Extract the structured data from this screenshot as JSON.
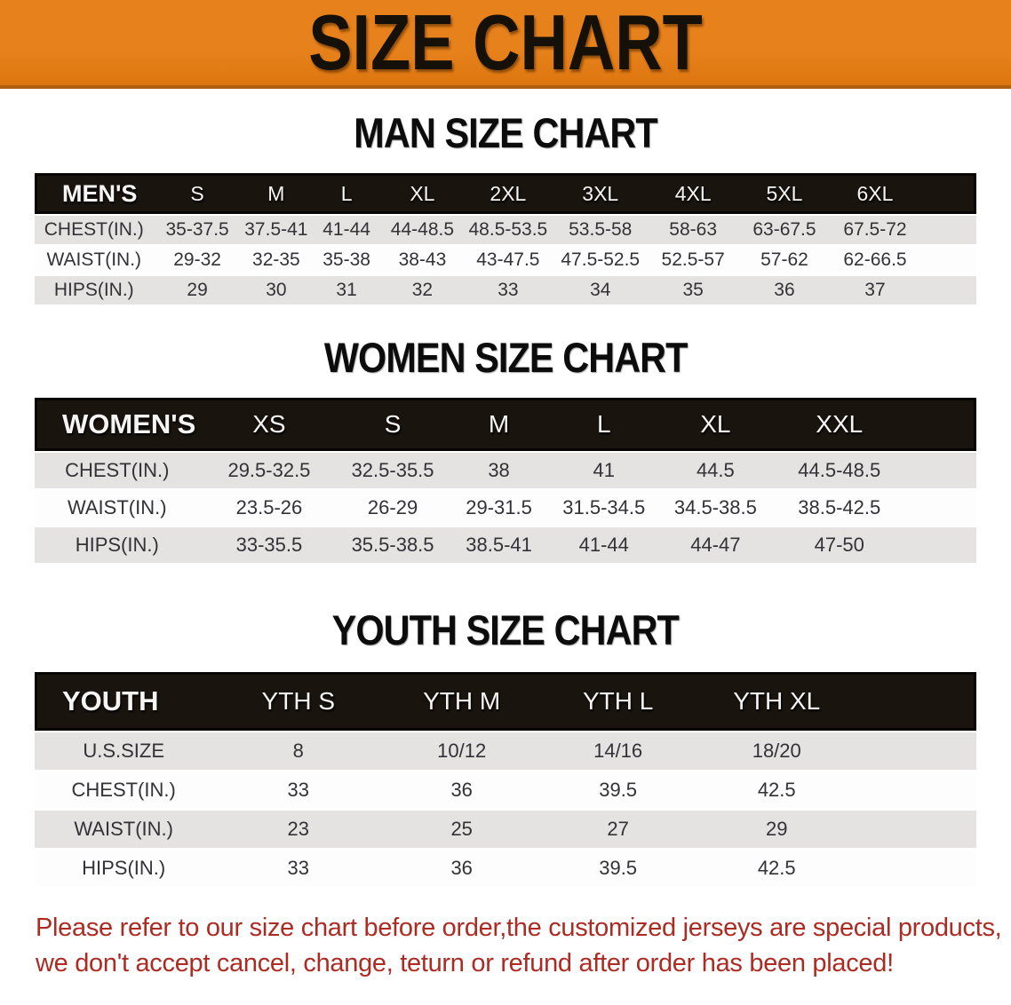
{
  "banner": {
    "title": "SIZE CHART",
    "bg_color": "#e7811b",
    "text_color": "#151008"
  },
  "sections": [
    {
      "title": "MAN SIZE CHART",
      "header_label": "MEN'S",
      "columns": [
        "S",
        "M",
        "L",
        "XL",
        "2XL",
        "3XL",
        "4XL",
        "5XL",
        "6XL"
      ],
      "rows": [
        {
          "label": "CHEST(IN.)",
          "values": [
            "35-37.5",
            "37.5-41",
            "41-44",
            "44-48.5",
            "48.5-53.5",
            "53.5-58",
            "58-63",
            "63-67.5",
            "67.5-72"
          ]
        },
        {
          "label": "WAIST(IN.)",
          "values": [
            "29-32",
            "32-35",
            "35-38",
            "38-43",
            "43-47.5",
            "47.5-52.5",
            "52.5-57",
            "57-62",
            "62-66.5"
          ]
        },
        {
          "label": "HIPS(IN.)",
          "values": [
            "29",
            "30",
            "31",
            "32",
            "33",
            "34",
            "35",
            "36",
            "37"
          ]
        }
      ]
    },
    {
      "title": "WOMEN SIZE CHART",
      "header_label": "WOMEN'S",
      "columns": [
        "XS",
        "S",
        "M",
        "L",
        "XL",
        "XXL"
      ],
      "rows": [
        {
          "label": "CHEST(IN.)",
          "values": [
            "29.5-32.5",
            "32.5-35.5",
            "38",
            "41",
            "44.5",
            "44.5-48.5"
          ]
        },
        {
          "label": "WAIST(IN.)",
          "values": [
            "23.5-26",
            "26-29",
            "29-31.5",
            "31.5-34.5",
            "34.5-38.5",
            "38.5-42.5"
          ]
        },
        {
          "label": "HIPS(IN.)",
          "values": [
            "33-35.5",
            "35.5-38.5",
            "38.5-41",
            "41-44",
            "44-47",
            "47-50"
          ]
        }
      ]
    },
    {
      "title": "YOUTH SIZE CHART",
      "header_label": "YOUTH",
      "columns": [
        "YTH S",
        "YTH M",
        "YTH L",
        "YTH XL"
      ],
      "rows": [
        {
          "label": "U.S.SIZE",
          "values": [
            "8",
            "10/12",
            "14/16",
            "18/20"
          ]
        },
        {
          "label": "CHEST(IN.)",
          "values": [
            "33",
            "36",
            "39.5",
            "42.5"
          ]
        },
        {
          "label": "WAIST(IN.)",
          "values": [
            "23",
            "25",
            "27",
            "29"
          ]
        },
        {
          "label": "HIPS(IN.)",
          "values": [
            "33",
            "36",
            "39.5",
            "42.5"
          ]
        }
      ]
    }
  ],
  "note": {
    "line1": "Please refer to our size chart before order,the customized jerseys are special products,",
    "line2": "we don't accept cancel, change, teturn or refund after order has been placed!",
    "color": "#ac2b23"
  }
}
